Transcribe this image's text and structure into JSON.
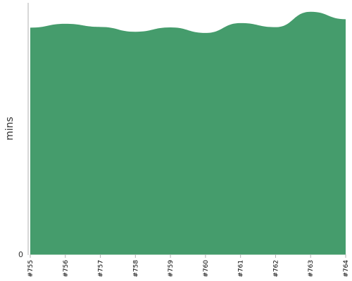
{
  "chart_data": {
    "type": "area",
    "categories": [
      "#755",
      "#756",
      "#757",
      "#758",
      "#759",
      "#760",
      "#761",
      "#762",
      "#763",
      "#764"
    ],
    "series": [
      {
        "values": [
          94,
          95.6,
          94.3,
          92.3,
          94.1,
          91.8,
          95.9,
          94.2,
          100.6,
          97.5
        ],
        "color": "#459c6c"
      }
    ],
    "title": "",
    "xlabel": "",
    "ylabel": "mins",
    "yticks": [
      0
    ],
    "ylim": [
      0,
      104.3
    ],
    "grid": false,
    "legend": "none"
  }
}
